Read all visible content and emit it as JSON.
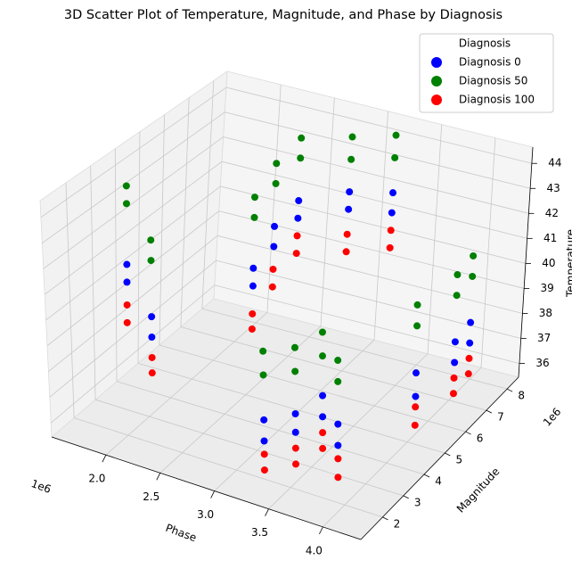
{
  "chart_data": {
    "type": "scatter3d",
    "title": "3D Scatter Plot of Temperature, Magnitude, and Phase by Diagnosis",
    "xlabel": "Phase",
    "ylabel": "Magnitude",
    "zlabel": "Temperature",
    "x_offset": "1e6",
    "y_offset": "1e6",
    "xlim": [
      1.5,
      4.35
    ],
    "ylim": [
      0.95,
      8.55
    ],
    "zlim": [
      35.45,
      44.65
    ],
    "xticks": [
      {
        "value": 2.0,
        "label": "2.0"
      },
      {
        "value": 2.5,
        "label": "2.5"
      },
      {
        "value": 3.0,
        "label": "3.0"
      },
      {
        "value": 3.5,
        "label": "3.5"
      },
      {
        "value": 4.0,
        "label": "4.0"
      }
    ],
    "yticks": [
      2,
      3,
      4,
      5,
      6,
      7,
      8
    ],
    "zticks": [
      36,
      37,
      38,
      39,
      40,
      41,
      42,
      43,
      44
    ],
    "grid": true,
    "legend_title": "Diagnosis",
    "legend_position": "upper right",
    "series": [
      {
        "name": "Diagnosis 0",
        "color": "blue",
        "x": [
          1.6,
          1.6,
          1.95,
          1.95,
          2.45,
          2.45,
          2.45,
          2.45,
          2.5,
          2.5,
          2.8,
          2.8,
          3.2,
          3.2,
          3.3,
          3.3,
          3.55,
          3.55,
          3.7,
          3.7,
          3.9,
          3.9,
          4.2,
          4.2,
          4.3,
          4.3,
          4.3,
          4.3
        ],
        "y": [
          4.0,
          4.0,
          3.4,
          3.4,
          5.5,
          5.5,
          6.4,
          6.4,
          7.2,
          7.2,
          8.0,
          8.0,
          8.0,
          8.0,
          1.8,
          1.8,
          2.0,
          2.0,
          2.5,
          2.5,
          2.2,
          2.2,
          4.3,
          4.3,
          5.6,
          5.6,
          6.3,
          6.3
        ],
        "z": [
          40.2,
          39.5,
          39.0,
          38.2,
          40.0,
          39.3,
          41.0,
          40.2,
          41.5,
          40.8,
          41.6,
          40.9,
          42.0,
          41.2,
          37.9,
          37.1,
          38.3,
          37.6,
          38.8,
          38.0,
          38.2,
          37.4,
          38.9,
          38.0,
          39.2,
          38.4,
          39.4,
          38.6
        ]
      },
      {
        "name": "Diagnosis 50",
        "color": "green",
        "x": [
          1.6,
          1.6,
          1.95,
          1.95,
          2.45,
          2.45,
          2.45,
          2.45,
          2.5,
          2.5,
          2.8,
          2.8,
          3.2,
          3.2,
          3.3,
          3.3,
          3.55,
          3.55,
          3.7,
          3.7,
          3.9,
          3.9,
          4.2,
          4.2,
          4.3,
          4.3,
          4.3,
          4.3
        ],
        "y": [
          4.0,
          4.0,
          3.4,
          3.4,
          5.5,
          5.5,
          6.4,
          6.4,
          7.2,
          7.2,
          8.0,
          8.0,
          8.0,
          8.0,
          1.8,
          1.8,
          2.0,
          2.0,
          2.5,
          2.5,
          2.2,
          2.2,
          4.3,
          4.3,
          5.6,
          5.6,
          6.3,
          6.3
        ],
        "z": [
          43.3,
          42.6,
          42.0,
          41.2,
          42.8,
          42.0,
          43.5,
          42.7,
          44.0,
          43.2,
          43.8,
          42.9,
          44.3,
          43.4,
          40.5,
          39.6,
          40.8,
          39.9,
          41.2,
          40.3,
          40.6,
          39.8,
          41.5,
          40.7,
          41.8,
          41.0,
          42.0,
          41.2
        ]
      },
      {
        "name": "Diagnosis 100",
        "color": "red",
        "x": [
          1.6,
          1.6,
          1.95,
          1.95,
          2.45,
          2.45,
          2.45,
          2.45,
          2.5,
          2.5,
          2.8,
          2.8,
          3.2,
          3.2,
          3.3,
          3.3,
          3.55,
          3.55,
          3.7,
          3.7,
          3.9,
          3.9,
          4.2,
          4.2,
          4.3,
          4.3,
          4.3,
          4.3
        ],
        "y": [
          4.0,
          4.0,
          3.4,
          3.4,
          5.5,
          5.5,
          6.4,
          6.4,
          7.2,
          7.2,
          8.0,
          8.0,
          8.0,
          8.0,
          1.8,
          1.8,
          2.0,
          2.0,
          2.5,
          2.5,
          2.2,
          2.2,
          4.3,
          4.3,
          5.6,
          5.6,
          6.3,
          6.3
        ],
        "z": [
          38.6,
          37.9,
          37.4,
          36.8,
          38.2,
          37.6,
          39.3,
          38.6,
          40.1,
          39.4,
          39.9,
          39.2,
          40.5,
          39.8,
          36.6,
          36.0,
          37.0,
          36.4,
          37.4,
          36.8,
          36.9,
          36.2,
          37.6,
          36.9,
          37.8,
          37.2,
          38.0,
          37.4
        ]
      }
    ]
  }
}
